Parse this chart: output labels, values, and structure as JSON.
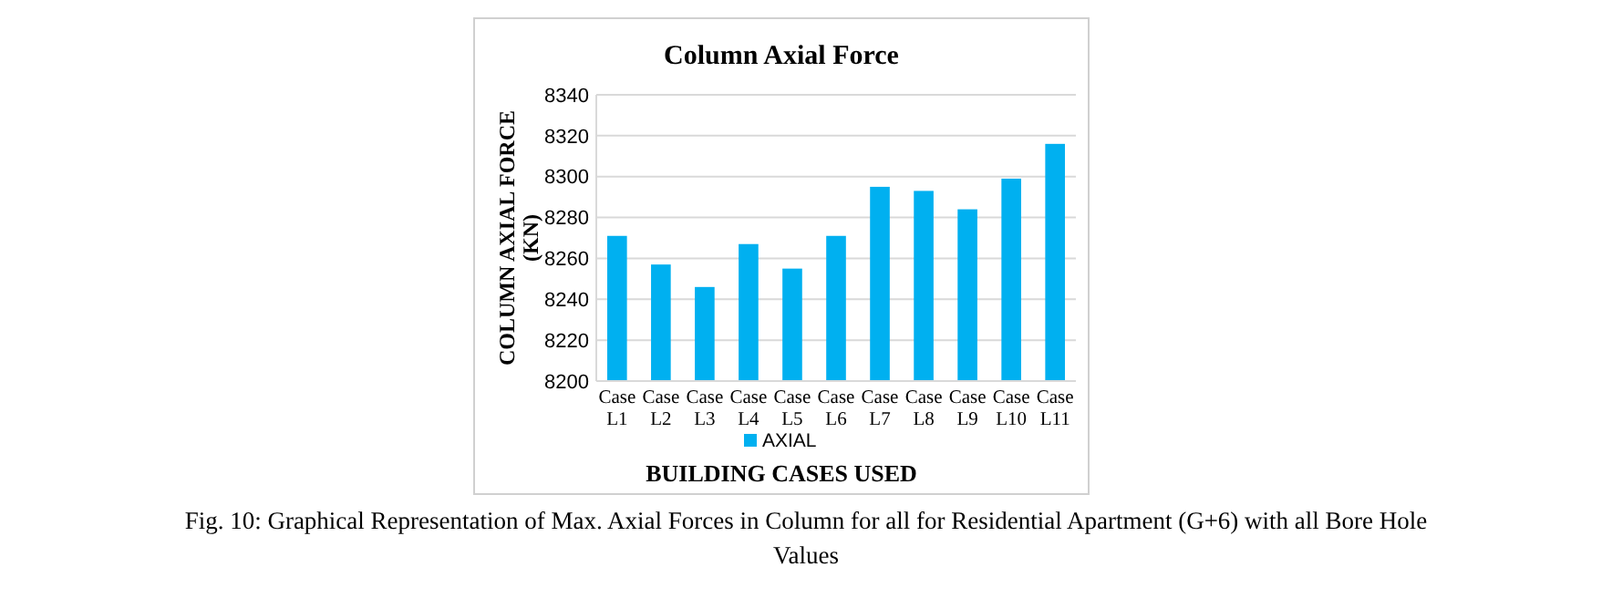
{
  "chart_data": {
    "type": "bar",
    "title": "Column Axial  Force",
    "xlabel": "BUILDING CASES USED",
    "ylabel": "COLUMN AXIAL FORCE (KN)",
    "categories": [
      "Case L1",
      "Case L2",
      "Case L3",
      "Case L4",
      "Case L5",
      "Case L6",
      "Case L7",
      "Case L8",
      "Case L9",
      "Case L10",
      "Case L11"
    ],
    "series": [
      {
        "name": "AXIAL",
        "color": "#00b0f0",
        "values": [
          8271,
          8257,
          8246,
          8267,
          8255,
          8271,
          8295,
          8293,
          8284,
          8299,
          8316
        ]
      }
    ],
    "ylim": [
      8200,
      8340
    ],
    "yticks": [
      8200,
      8220,
      8240,
      8260,
      8280,
      8300,
      8320,
      8340
    ],
    "grid": "y",
    "legend": "bottom",
    "annotations": [
      "Fig. 10: Graphical Representation of Max. Axial Forces in Column for all for Residential Apartment (G+6) with all Bore Hole Values"
    ]
  }
}
